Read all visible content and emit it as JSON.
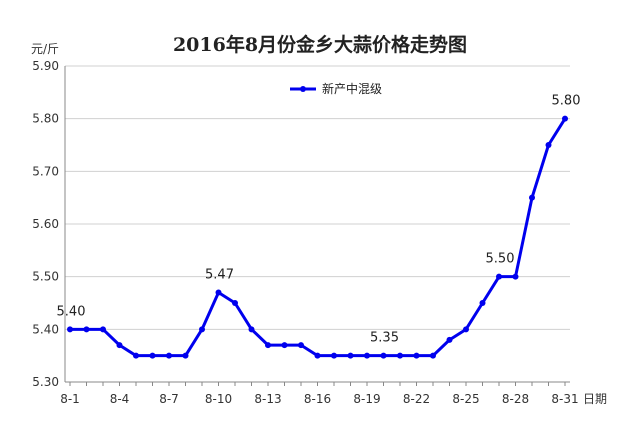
{
  "chart_data": {
    "type": "line",
    "title": "2016年8月份金乡大蒜价格走势图",
    "ylabel": "元/斤",
    "xlabel": "日期",
    "ylim": [
      5.3,
      5.9
    ],
    "yticks": [
      "5.30",
      "5.40",
      "5.50",
      "5.60",
      "5.70",
      "5.80",
      "5.90"
    ],
    "categories": [
      "8-1",
      "8-2",
      "8-3",
      "8-4",
      "8-5",
      "8-6",
      "8-7",
      "8-8",
      "8-9",
      "8-10",
      "8-11",
      "8-12",
      "8-13",
      "8-14",
      "8-15",
      "8-16",
      "8-17",
      "8-18",
      "8-19",
      "8-20",
      "8-21",
      "8-22",
      "8-23",
      "8-24",
      "8-25",
      "8-26",
      "8-27",
      "8-28",
      "8-29",
      "8-30",
      "8-31"
    ],
    "xtick_labels": [
      "8-1",
      "8-4",
      "8-7",
      "8-10",
      "8-13",
      "8-16",
      "8-19",
      "8-22",
      "8-25",
      "8-28",
      "8-31"
    ],
    "series": [
      {
        "name": "新产中混级",
        "color": "#0000ee",
        "values": [
          5.4,
          5.4,
          5.4,
          5.37,
          5.35,
          5.35,
          5.35,
          5.35,
          5.4,
          5.47,
          5.45,
          5.4,
          5.37,
          5.37,
          5.37,
          5.35,
          5.35,
          5.35,
          5.35,
          5.35,
          5.35,
          5.35,
          5.35,
          5.38,
          5.4,
          5.45,
          5.5,
          5.5,
          5.65,
          5.75,
          5.8
        ]
      }
    ],
    "data_labels": [
      {
        "index": 0,
        "text": "5.40"
      },
      {
        "index": 9,
        "text": "5.47"
      },
      {
        "index": 19,
        "text": "5.35"
      },
      {
        "index": 26,
        "text": "5.50"
      },
      {
        "index": 30,
        "text": "5.80"
      }
    ],
    "grid": true,
    "legend": "top-center"
  }
}
